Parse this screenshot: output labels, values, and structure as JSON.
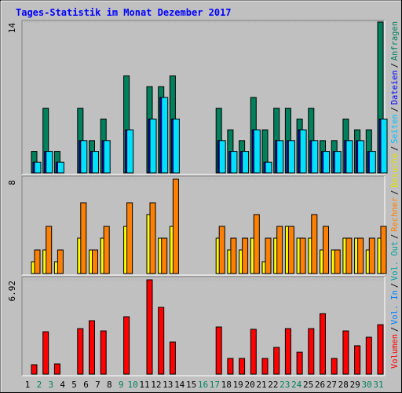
{
  "chart_data": {
    "type": "bar",
    "title": "Tages-Statistik im Monat Dezember 2017",
    "categories": [
      "1",
      "2",
      "3",
      "4",
      "5",
      "6",
      "7",
      "8",
      "9",
      "10",
      "11",
      "12",
      "13",
      "14",
      "15",
      "16",
      "17",
      "18",
      "19",
      "20",
      "21",
      "22",
      "23",
      "24",
      "25",
      "26",
      "27",
      "28",
      "29",
      "30",
      "31"
    ],
    "category_colors": [
      "#000000",
      "#00805c",
      "#00805c",
      "#000000",
      "#000000",
      "#000000",
      "#000000",
      "#000000",
      "#00805c",
      "#00805c",
      "#000000",
      "#000000",
      "#000000",
      "#000000",
      "#000000",
      "#00805c",
      "#00805c",
      "#000000",
      "#000000",
      "#000000",
      "#000000",
      "#000000",
      "#00805c",
      "#00805c",
      "#000000",
      "#000000",
      "#000000",
      "#000000",
      "#000000",
      "#00805c",
      "#00805c"
    ],
    "panels": [
      {
        "ylim": [
          0,
          14
        ],
        "yticks": [
          14
        ],
        "series": [
          {
            "name": "Anfragen",
            "color": "#00805c",
            "values": [
              2,
              6,
              2,
              0,
              6,
              3,
              5,
              0,
              9,
              0,
              8,
              8,
              9,
              0,
              0,
              0,
              6,
              4,
              3,
              7,
              4,
              6,
              6,
              5,
              6,
              3,
              3,
              5,
              4,
              4,
              14
            ]
          },
          {
            "name": "Dateien",
            "color": "#0000ff",
            "values": [
              1,
              2,
              1,
              0,
              3,
              2,
              3,
              0,
              4,
              0,
              5,
              7,
              5,
              0,
              0,
              0,
              3,
              2,
              2,
              4,
              1,
              3,
              3,
              4,
              3,
              2,
              2,
              3,
              3,
              2,
              5
            ]
          },
          {
            "name": "Seiten",
            "color": "#00e0ff",
            "values": [
              1,
              2,
              1,
              0,
              3,
              2,
              3,
              0,
              4,
              0,
              5,
              7,
              5,
              0,
              0,
              0,
              3,
              2,
              2,
              4,
              1,
              3,
              3,
              4,
              3,
              2,
              2,
              3,
              3,
              2,
              5
            ]
          }
        ]
      },
      {
        "ylim": [
          0,
          8
        ],
        "yticks": [
          8
        ],
        "series": [
          {
            "name": "Besuche",
            "color": "#ffff00",
            "values": [
              1,
              2,
              1,
              0,
              3,
              2,
              3,
              0,
              4,
              0,
              5,
              3,
              4,
              0,
              0,
              0,
              3,
              2,
              2,
              3,
              1,
              3,
              4,
              3,
              3,
              2,
              2,
              3,
              3,
              2,
              3
            ]
          },
          {
            "name": "Rechner",
            "color": "#ff8000",
            "values": [
              2,
              4,
              2,
              0,
              6,
              2,
              4,
              0,
              6,
              0,
              6,
              3,
              8,
              0,
              0,
              0,
              4,
              3,
              3,
              5,
              3,
              4,
              4,
              3,
              5,
              4,
              2,
              3,
              3,
              3,
              4
            ]
          }
        ]
      },
      {
        "ylim": [
          0,
          6.92
        ],
        "yticks": [
          6.92
        ],
        "series": [
          {
            "name": "Volumen",
            "color": "#ff0000",
            "values": [
              0.69,
              3.11,
              0.75,
              0,
              3.34,
              3.92,
              3.17,
              0,
              4.21,
              0,
              6.92,
              4.9,
              2.36,
              0,
              0,
              0,
              3.46,
              1.15,
              1.15,
              3.29,
              1.15,
              1.96,
              3.34,
              1.61,
              3.34,
              4.44,
              1.15,
              3.17,
              2.08,
              2.71,
              3.63
            ]
          }
        ]
      }
    ],
    "legend": [
      {
        "name": "Volumen",
        "color": "#ff0000"
      },
      {
        "name": "Vol. In",
        "color": "#0080ff"
      },
      {
        "name": "Vol. Out",
        "color": "#00a0a0"
      },
      {
        "name": "Rechner",
        "color": "#ff8000"
      },
      {
        "name": "Besuche",
        "color": "#e0e000"
      },
      {
        "name": "Seiten",
        "color": "#00c0ff"
      },
      {
        "name": "Dateien",
        "color": "#0000ff"
      },
      {
        "name": "Anfragen",
        "color": "#00805c"
      }
    ],
    "legend_separator": "/"
  }
}
